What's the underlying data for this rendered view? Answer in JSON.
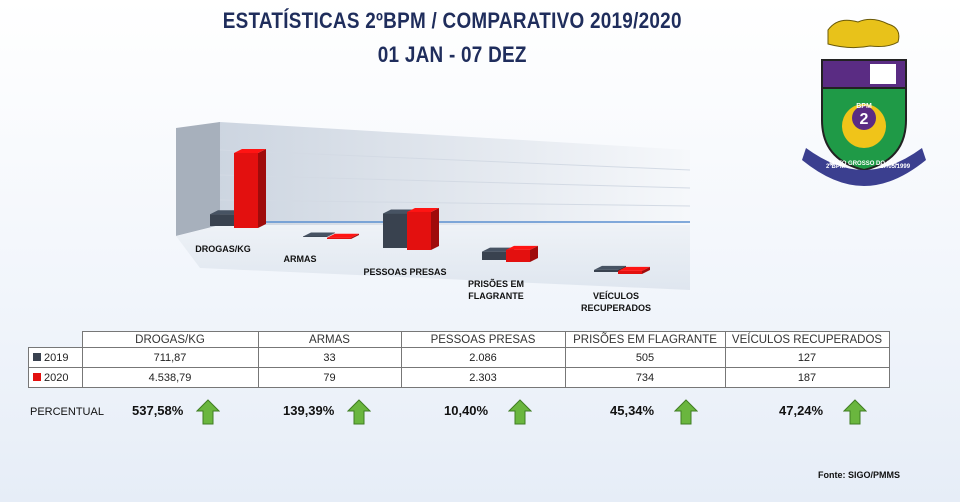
{
  "title": "ESTATÍSTICAS 2ºBPM / COMPARATIVO 2019/2020",
  "subtitle": "01 JAN - 07 DEZ",
  "chart_data": {
    "type": "bar3d",
    "categories": [
      "DROGAS/KG",
      "ARMAS",
      "PESSOAS PRESAS",
      "PRISÕES EM FLAGRANTE",
      "VEÍCULOS RECUPERADOS"
    ],
    "series": [
      {
        "name": "2019",
        "color": "#39424f",
        "values": [
          711.87,
          33,
          2086,
          505,
          127
        ],
        "value_labels": [
          "711,87",
          "33",
          "2.086",
          "505",
          "127"
        ]
      },
      {
        "name": "2020",
        "color": "#e3100f",
        "values": [
          4538.79,
          79,
          2303,
          734,
          187
        ],
        "value_labels": [
          "4.538,79",
          "79",
          "2.303",
          "734",
          "187"
        ]
      }
    ],
    "percentual": {
      "label": "PERCENTUAL",
      "values": [
        537.58,
        139.39,
        10.4,
        45.34,
        47.24
      ],
      "value_labels": [
        "537,58%",
        "139,39%",
        "10,40%",
        "45,34%",
        "47,24%"
      ]
    }
  },
  "source": "Fonte: SIGO/PMMS",
  "logo": {
    "unit": "BPM",
    "number": "2",
    "state": "MATO GROSSO DO SUL",
    "name": "2ºBPM",
    "date": "27/05/1999"
  }
}
